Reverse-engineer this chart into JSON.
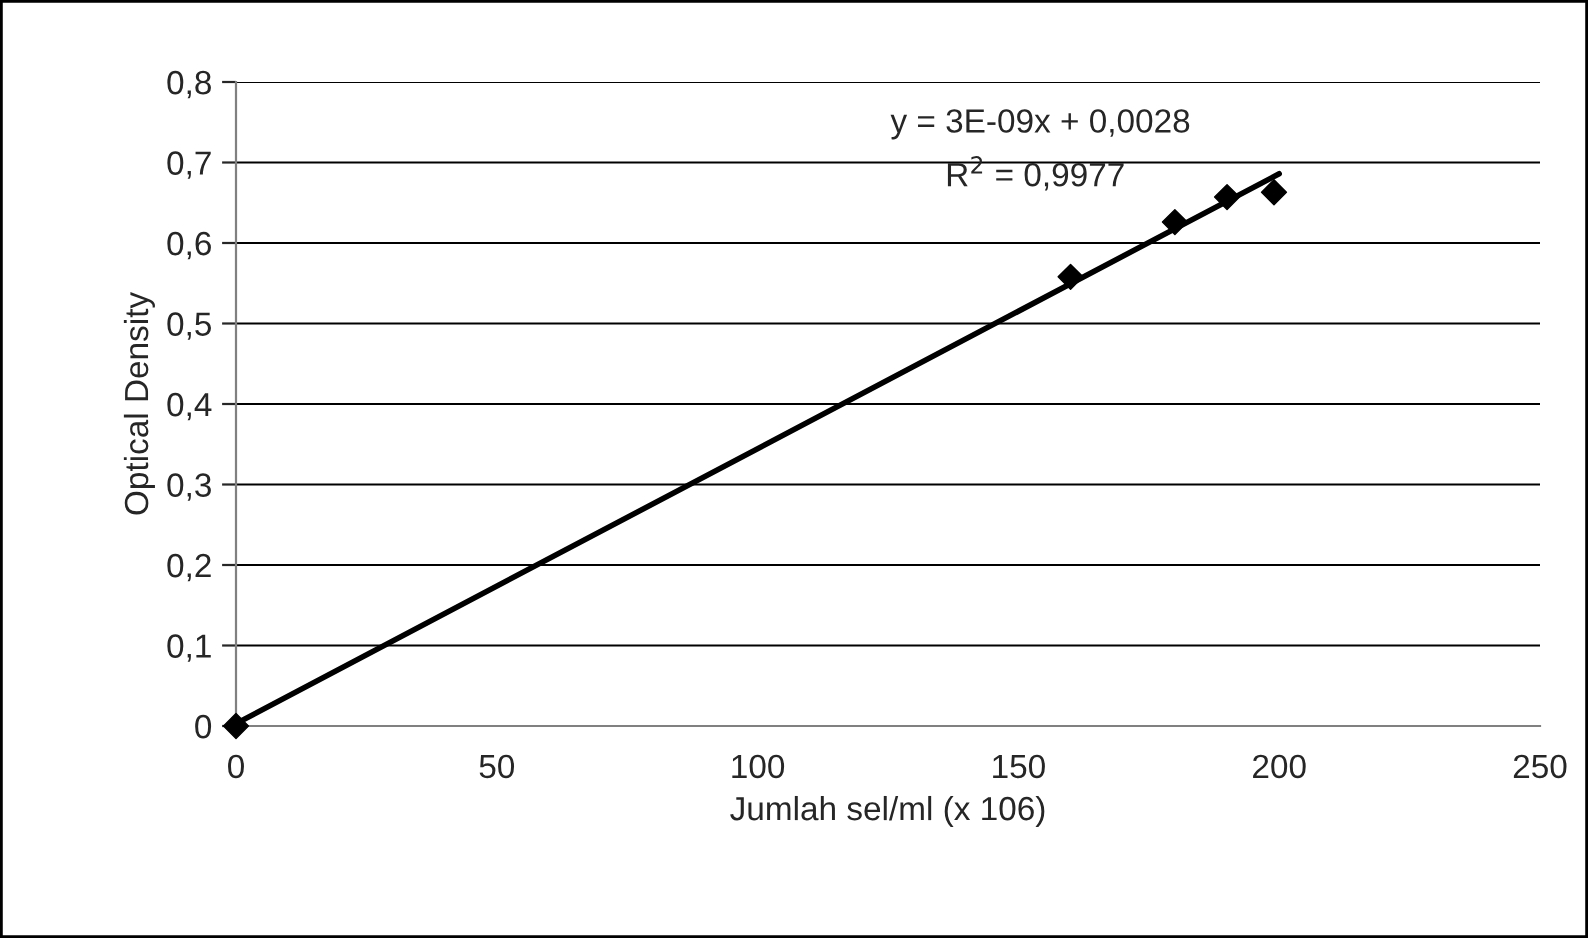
{
  "chart_data": {
    "type": "scatter",
    "xlabel": "Jumlah sel/ml (x 106)",
    "ylabel": "Optical Density",
    "series": [
      {
        "color": "#000000",
        "marker": "diamond",
        "x": [
          0,
          160,
          180,
          190,
          199
        ],
        "values": [
          0,
          0.558,
          0.626,
          0.657,
          0.663
        ]
      },
      {
        "type": "line",
        "color": "#000000",
        "line_style": "solid",
        "marker": "none",
        "x": [
          0,
          200
        ],
        "values": [
          0.003,
          0.686
        ]
      }
    ],
    "xlim": [
      0,
      250
    ],
    "xticks": [
      0,
      50,
      100,
      150,
      200,
      250
    ],
    "ylim": [
      0,
      0.8
    ],
    "yticks": [
      0,
      {
        "value": 0.1,
        "label": "0,1"
      },
      {
        "value": 0.2,
        "label": "0,2"
      },
      {
        "value": 0.3,
        "label": "0,3"
      },
      {
        "value": 0.4,
        "label": "0,4"
      },
      {
        "value": 0.5,
        "label": "0,5"
      },
      {
        "value": 0.6,
        "label": "0,6"
      },
      {
        "value": 0.7,
        "label": "0,7"
      },
      {
        "value": 0.8,
        "label": "0,8"
      }
    ],
    "grid": "y",
    "legend": false,
    "annotations": [
      "y = 3E-09x + 0,0028",
      "R$^{2}$ = 0,9977"
    ]
  }
}
